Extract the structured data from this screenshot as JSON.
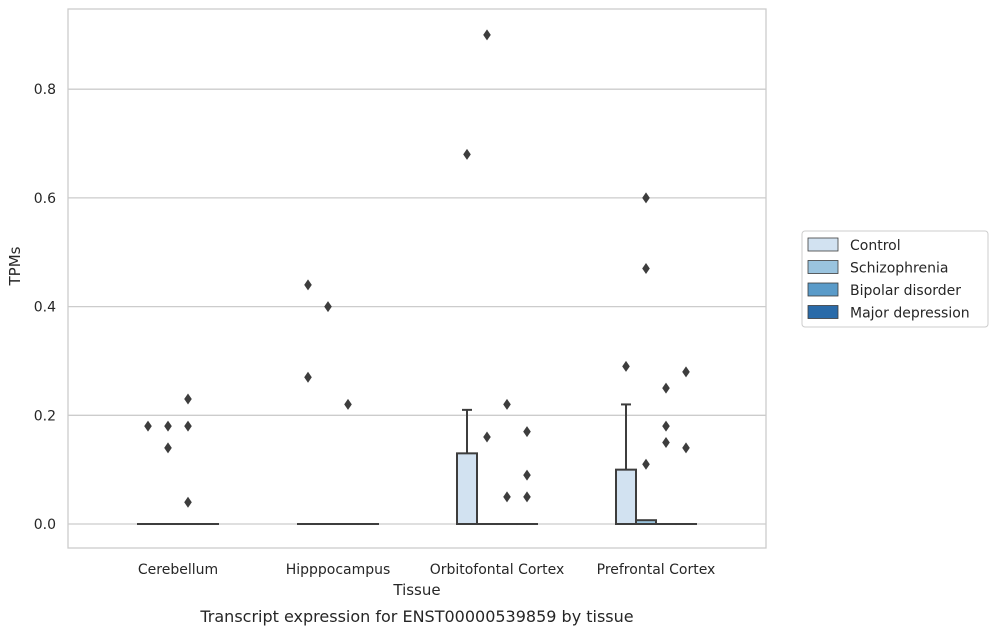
{
  "chart_data": {
    "type": "box",
    "title": "",
    "caption": "Transcript expression for ENST00000539859 by tissue",
    "xlabel": "Tissue",
    "ylabel": "TPMs",
    "ylim": [
      -0.045,
      0.95
    ],
    "yticks": [
      "0.0",
      "0.2",
      "0.4",
      "0.6",
      "0.8"
    ],
    "grid": true,
    "legend_position": "right",
    "categories": [
      "Cerebellum",
      "Hipppocampus",
      "Orbitofontal Cortex",
      "Prefrontal Cortex"
    ],
    "series": [
      {
        "name": "Control",
        "color": "#d2e2f1",
        "boxes": [
          {
            "q1": 0,
            "median": 0,
            "q3": 0,
            "whisker_low": 0,
            "whisker_high": 0,
            "outliers": [
              0.18
            ]
          },
          {
            "q1": 0,
            "median": 0,
            "q3": 0,
            "whisker_low": 0,
            "whisker_high": 0,
            "outliers": [
              0.27,
              0.44
            ]
          },
          {
            "q1": 0,
            "median": 0,
            "q3": 0.13,
            "whisker_low": 0,
            "whisker_high": 0.21,
            "outliers": [
              0.68
            ]
          },
          {
            "q1": 0,
            "median": 0,
            "q3": 0.1,
            "whisker_low": 0,
            "whisker_high": 0.22,
            "outliers": [
              0.29
            ]
          }
        ]
      },
      {
        "name": "Schizophrenia",
        "color": "#9ac4df",
        "boxes": [
          {
            "q1": 0,
            "median": 0,
            "q3": 0,
            "whisker_low": 0,
            "whisker_high": 0,
            "outliers": [
              0.14,
              0.18
            ]
          },
          {
            "q1": 0,
            "median": 0,
            "q3": 0,
            "whisker_low": 0,
            "whisker_high": 0,
            "outliers": [
              0.4
            ]
          },
          {
            "q1": 0,
            "median": 0,
            "q3": 0,
            "whisker_low": 0,
            "whisker_high": 0,
            "outliers": [
              0.16,
              0.9
            ]
          },
          {
            "q1": 0,
            "median": 0,
            "q3": 0.007,
            "whisker_low": 0,
            "whisker_high": 0.007,
            "outliers": [
              0.11,
              0.47,
              0.6
            ]
          }
        ]
      },
      {
        "name": "Bipolar disorder",
        "color": "#5a9bc9",
        "boxes": [
          {
            "q1": 0,
            "median": 0,
            "q3": 0,
            "whisker_low": 0,
            "whisker_high": 0,
            "outliers": [
              0.04,
              0.18,
              0.23
            ]
          },
          {
            "q1": 0,
            "median": 0,
            "q3": 0,
            "whisker_low": 0,
            "whisker_high": 0,
            "outliers": [
              0.22
            ]
          },
          {
            "q1": 0,
            "median": 0,
            "q3": 0,
            "whisker_low": 0,
            "whisker_high": 0,
            "outliers": [
              0.05,
              0.22
            ]
          },
          {
            "q1": 0,
            "median": 0,
            "q3": 0,
            "whisker_low": 0,
            "whisker_high": 0,
            "outliers": [
              0.15,
              0.18,
              0.25
            ]
          }
        ]
      },
      {
        "name": "Major depression",
        "color": "#2a6ba9",
        "boxes": [
          {
            "q1": 0,
            "median": 0,
            "q3": 0,
            "whisker_low": 0,
            "whisker_high": 0,
            "outliers": []
          },
          {
            "q1": 0,
            "median": 0,
            "q3": 0,
            "whisker_low": 0,
            "whisker_high": 0,
            "outliers": []
          },
          {
            "q1": 0,
            "median": 0,
            "q3": 0,
            "whisker_low": 0,
            "whisker_high": 0,
            "outliers": [
              0.05,
              0.09,
              0.17
            ]
          },
          {
            "q1": 0,
            "median": 0,
            "q3": 0,
            "whisker_low": 0,
            "whisker_high": 0,
            "outliers": [
              0.14,
              0.28
            ]
          }
        ]
      }
    ]
  }
}
